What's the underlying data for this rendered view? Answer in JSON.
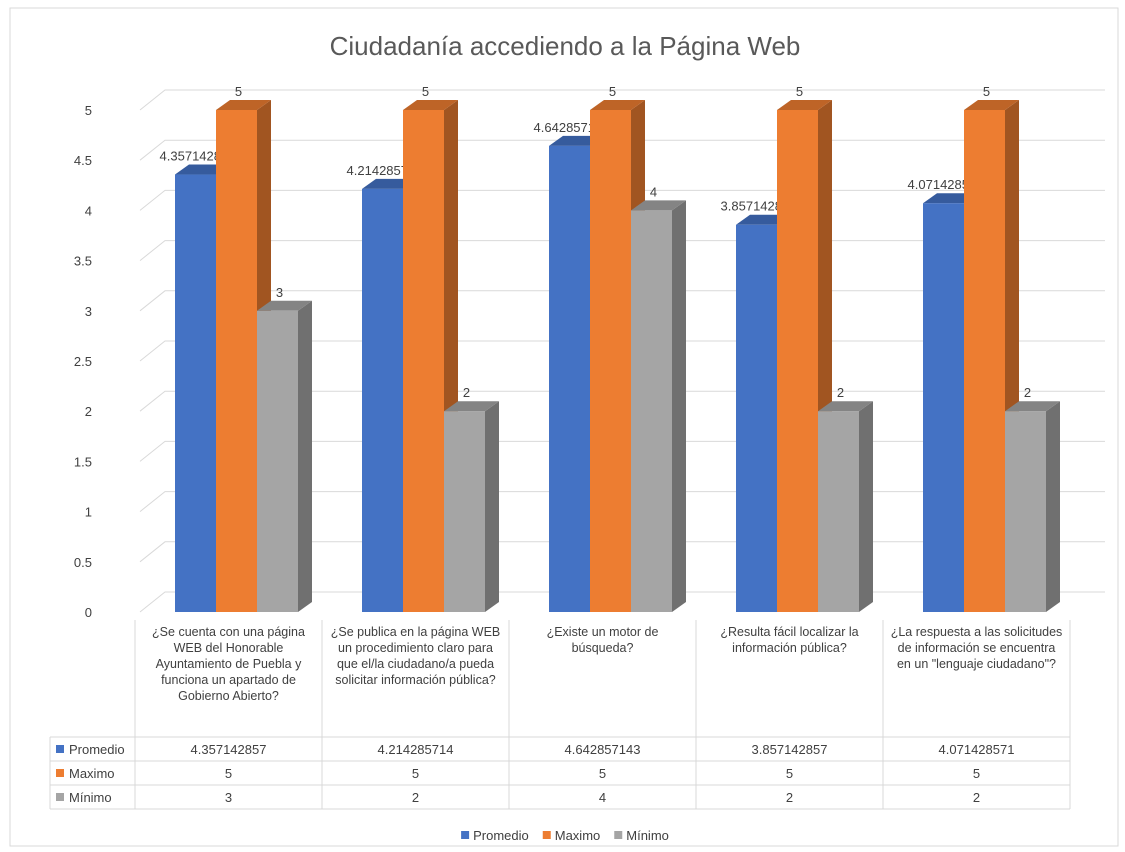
{
  "chart_data": {
    "type": "bar3d",
    "title": "Ciudadanía accediendo a la Página Web",
    "categories": [
      "¿Se cuenta con una página WEB del Honorable Ayuntamiento de Puebla y funciona un apartado de Gobierno Abierto?",
      "¿Se publica en la página WEB un procedimiento claro para que el/la ciudadano/a pueda solicitar información pública?",
      "¿Existe un motor de búsqueda?",
      "¿Resulta fácil localizar la información pública?",
      "¿La respuesta a las solicitudes de información se encuentra en un \"lenguaje ciudadano\"?"
    ],
    "series": [
      {
        "name": "Promedio",
        "color": "#4472c4",
        "values": [
          4.357142857,
          4.214285714,
          4.642857143,
          3.857142857,
          4.071428571
        ]
      },
      {
        "name": "Maximo",
        "color": "#ed7d31",
        "values": [
          5,
          5,
          5,
          5,
          5
        ]
      },
      {
        "name": "Mínimo",
        "color": "#a5a5a5",
        "values": [
          3,
          2,
          4,
          2,
          2
        ]
      }
    ],
    "ylim": [
      0,
      5
    ],
    "yticks": [
      0,
      0.5,
      1,
      1.5,
      2,
      2.5,
      3,
      3.5,
      4,
      4.5,
      5
    ],
    "grid": true,
    "legend": "bottom",
    "data_table": true
  }
}
